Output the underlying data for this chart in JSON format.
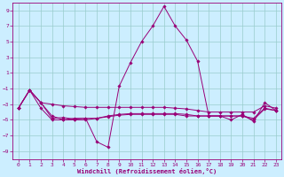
{
  "xlabel": "Windchill (Refroidissement éolien,°C)",
  "bg_color": "#cceeff",
  "grid_color": "#99cccc",
  "line_color": "#990077",
  "xlim": [
    -0.5,
    23.5
  ],
  "ylim": [
    -10,
    10
  ],
  "yticks": [
    -9,
    -7,
    -5,
    -3,
    -1,
    1,
    3,
    5,
    7,
    9
  ],
  "xticks": [
    0,
    1,
    2,
    3,
    4,
    5,
    6,
    7,
    8,
    9,
    10,
    11,
    12,
    13,
    14,
    15,
    16,
    17,
    18,
    19,
    20,
    21,
    22,
    23
  ],
  "series": [
    {
      "x": [
        0,
        1,
        2,
        3,
        4,
        5,
        6,
        7,
        8,
        9,
        10,
        11,
        12,
        13,
        14,
        15,
        16,
        17,
        18,
        19,
        20,
        21,
        22,
        23
      ],
      "y": [
        -3.5,
        -1.2,
        -2.8,
        -4.8,
        -4.7,
        -4.9,
        -4.8,
        -7.8,
        -8.5,
        -0.7,
        2.3,
        5.0,
        7.0,
        9.5,
        7.0,
        5.2,
        2.5,
        -4.5,
        -4.5,
        -5.0,
        -4.3,
        -5.2,
        -2.8,
        -3.8
      ]
    },
    {
      "x": [
        0,
        1,
        2,
        3,
        4,
        5,
        6,
        7,
        8,
        9,
        10,
        11,
        12,
        13,
        14,
        15,
        16,
        17,
        18,
        19,
        20,
        21,
        22,
        23
      ],
      "y": [
        -3.5,
        -1.2,
        -2.8,
        -3.0,
        -3.2,
        -3.3,
        -3.4,
        -3.4,
        -3.4,
        -3.4,
        -3.4,
        -3.4,
        -3.4,
        -3.4,
        -3.5,
        -3.6,
        -3.8,
        -4.0,
        -4.0,
        -4.0,
        -4.0,
        -4.0,
        -3.2,
        -3.5
      ]
    },
    {
      "x": [
        0,
        1,
        2,
        3,
        4,
        5,
        6,
        7,
        8,
        9,
        10,
        11,
        12,
        13,
        14,
        15,
        16,
        17,
        18,
        19,
        20,
        21,
        22,
        23
      ],
      "y": [
        -3.5,
        -1.2,
        -3.5,
        -5.0,
        -5.0,
        -4.8,
        -4.8,
        -4.8,
        -4.5,
        -4.3,
        -4.2,
        -4.2,
        -4.2,
        -4.2,
        -4.2,
        -4.3,
        -4.5,
        -4.5,
        -4.5,
        -4.5,
        -4.5,
        -5.0,
        -3.6,
        -3.8
      ]
    },
    {
      "x": [
        0,
        1,
        2,
        3,
        4,
        5,
        6,
        7,
        8,
        9,
        10,
        11,
        12,
        13,
        14,
        15,
        16,
        17,
        18,
        19,
        20,
        21,
        22,
        23
      ],
      "y": [
        -3.5,
        -1.2,
        -2.8,
        -4.5,
        -5.0,
        -5.0,
        -5.0,
        -4.8,
        -4.6,
        -4.4,
        -4.3,
        -4.3,
        -4.3,
        -4.3,
        -4.3,
        -4.5,
        -4.5,
        -4.5,
        -4.5,
        -4.5,
        -4.5,
        -4.8,
        -3.5,
        -3.8
      ]
    }
  ]
}
